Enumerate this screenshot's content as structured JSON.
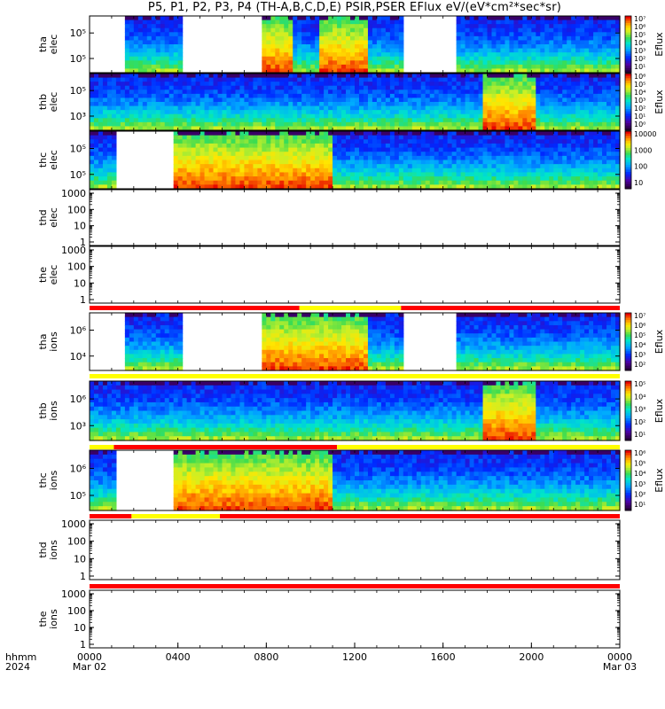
{
  "title": "P5, P1, P2, P3, P4 (TH-A,B,C,D,E) PSIR,PSER EFlux eV/(eV*cm²*sec*sr)",
  "x_axis": {
    "labels": [
      "hhmm",
      "2024"
    ],
    "ticks": [
      {
        "value": 0,
        "line1": "0000",
        "line2": "Mar 02"
      },
      {
        "value": 4,
        "line1": "0400",
        "line2": ""
      },
      {
        "value": 8,
        "line1": "0800",
        "line2": ""
      },
      {
        "value": 12,
        "line1": "1200",
        "line2": ""
      },
      {
        "value": 16,
        "line1": "1600",
        "line2": ""
      },
      {
        "value": 20,
        "line1": "2000",
        "line2": ""
      },
      {
        "value": 24,
        "line1": "0000",
        "line2": "Mar 03"
      }
    ],
    "range_hours": [
      0,
      24
    ]
  },
  "colors": {
    "mode_red": "#ff0000",
    "mode_yellow": "#ffff00"
  },
  "chart_data": [
    {
      "type": "heatmap",
      "name": "tha-elec",
      "ylabel": [
        "tha",
        "elec"
      ],
      "yticks": [
        "10⁵",
        "10⁵"
      ],
      "colorbar": {
        "ticks": [
          "10⁷",
          "10⁶",
          "10⁵",
          "10⁴",
          "10³",
          "10²",
          "10¹"
        ],
        "label": "Eflux"
      },
      "gaps_hours": [
        [
          0,
          1.6
        ],
        [
          4.2,
          7.8
        ],
        [
          14.2,
          16.7
        ]
      ],
      "hot_hours": [
        [
          7.8,
          9.2
        ],
        [
          10.5,
          12.7
        ]
      ]
    },
    {
      "type": "heatmap",
      "name": "thb-elec",
      "ylabel": [
        "thb",
        "elec"
      ],
      "yticks": [
        "10⁵",
        "10³"
      ],
      "colorbar": {
        "ticks": [
          "10⁶",
          "10⁵",
          "10⁴",
          "10³",
          "10²",
          "10¹",
          "10⁰"
        ],
        "label": "Eflux"
      },
      "gaps_hours": [],
      "hot_hours": [
        [
          17.9,
          20.3
        ]
      ]
    },
    {
      "type": "heatmap",
      "name": "thc-elec",
      "ylabel": [
        "thc",
        "elec"
      ],
      "yticks": [
        "10⁵",
        "10⁵"
      ],
      "colorbar": {
        "ticks": [
          "10000",
          "1000",
          "100",
          "10"
        ],
        "label": ""
      },
      "gaps_hours": [
        [
          1.2,
          3.8
        ]
      ],
      "hot_hours": [
        [
          3.8,
          11.0
        ]
      ]
    },
    {
      "type": "line",
      "name": "thd-elec",
      "ylabel": [
        "thd",
        "elec"
      ],
      "yticks": [
        "1000",
        "100",
        "10",
        "1"
      ],
      "ylim": [
        1,
        1000
      ],
      "yscale": "log"
    },
    {
      "type": "line",
      "name": "the-elec",
      "ylabel": [
        "the",
        "elec"
      ],
      "yticks": [
        "1000",
        "100",
        "10",
        "1"
      ],
      "ylim": [
        1,
        1000
      ],
      "yscale": "log"
    },
    {
      "type": "heatmap",
      "name": "tha-ions",
      "ylabel": [
        "tha",
        "ions"
      ],
      "yticks": [
        "10⁶",
        "10⁴"
      ],
      "colorbar": {
        "ticks": [
          "10⁷",
          "10⁶",
          "10⁵",
          "10⁴",
          "10³",
          "10²"
        ],
        "label": "Eflux"
      },
      "gaps_hours": [
        [
          0,
          1.6
        ],
        [
          4.2,
          7.8
        ],
        [
          14.2,
          16.7
        ]
      ],
      "hot_hours": [
        [
          7.8,
          12.7
        ]
      ]
    },
    {
      "type": "heatmap",
      "name": "thb-ions",
      "ylabel": [
        "thb",
        "ions"
      ],
      "yticks": [
        "10⁶",
        "10³"
      ],
      "colorbar": {
        "ticks": [
          "10⁵",
          "10⁴",
          "10³",
          "10²",
          "10¹"
        ],
        "label": "Eflux"
      },
      "gaps_hours": [],
      "hot_hours": [
        [
          17.9,
          20.3
        ]
      ]
    },
    {
      "type": "heatmap",
      "name": "thc-ions",
      "ylabel": [
        "thc",
        "ions"
      ],
      "yticks": [
        "10⁶",
        "10⁵"
      ],
      "colorbar": {
        "ticks": [
          "10⁶",
          "10⁵",
          "10⁴",
          "10³",
          "10²",
          "10¹"
        ],
        "label": "Eflux"
      },
      "gaps_hours": [
        [
          1.2,
          3.8
        ]
      ],
      "hot_hours": [
        [
          3.8,
          11.0
        ]
      ]
    },
    {
      "type": "line",
      "name": "thd-ions",
      "ylabel": [
        "thd",
        "ions"
      ],
      "yticks": [
        "1000",
        "100",
        "10",
        "1"
      ],
      "ylim": [
        1,
        1000
      ],
      "yscale": "log"
    },
    {
      "type": "line",
      "name": "the-ions",
      "ylabel": [
        "the",
        "ions"
      ],
      "yticks": [
        "1000",
        "100",
        "10",
        "1"
      ],
      "ylim": [
        1,
        1000
      ],
      "yscale": "log"
    }
  ],
  "mode_bars": [
    {
      "name": "mode-bar-1",
      "segments": [
        {
          "from": 0,
          "to": 9.5,
          "color": "red"
        },
        {
          "from": 9.5,
          "to": 14.1,
          "color": "yellow"
        },
        {
          "from": 14.1,
          "to": 24,
          "color": "red"
        }
      ]
    },
    {
      "name": "mode-bar-2",
      "segments": [
        {
          "from": 0,
          "to": 24,
          "color": "yellow"
        }
      ]
    },
    {
      "name": "mode-bar-3",
      "segments": [
        {
          "from": 0,
          "to": 1.1,
          "color": "yellow"
        },
        {
          "from": 1.1,
          "to": 11.2,
          "color": "red"
        },
        {
          "from": 11.2,
          "to": 24,
          "color": "yellow"
        }
      ]
    },
    {
      "name": "mode-bar-4",
      "segments": [
        {
          "from": 0,
          "to": 1.9,
          "color": "red"
        },
        {
          "from": 1.9,
          "to": 5.9,
          "color": "yellow"
        },
        {
          "from": 5.9,
          "to": 24,
          "color": "red"
        }
      ]
    },
    {
      "name": "mode-bar-5",
      "segments": [
        {
          "from": 0,
          "to": 24,
          "color": "red"
        }
      ]
    }
  ]
}
